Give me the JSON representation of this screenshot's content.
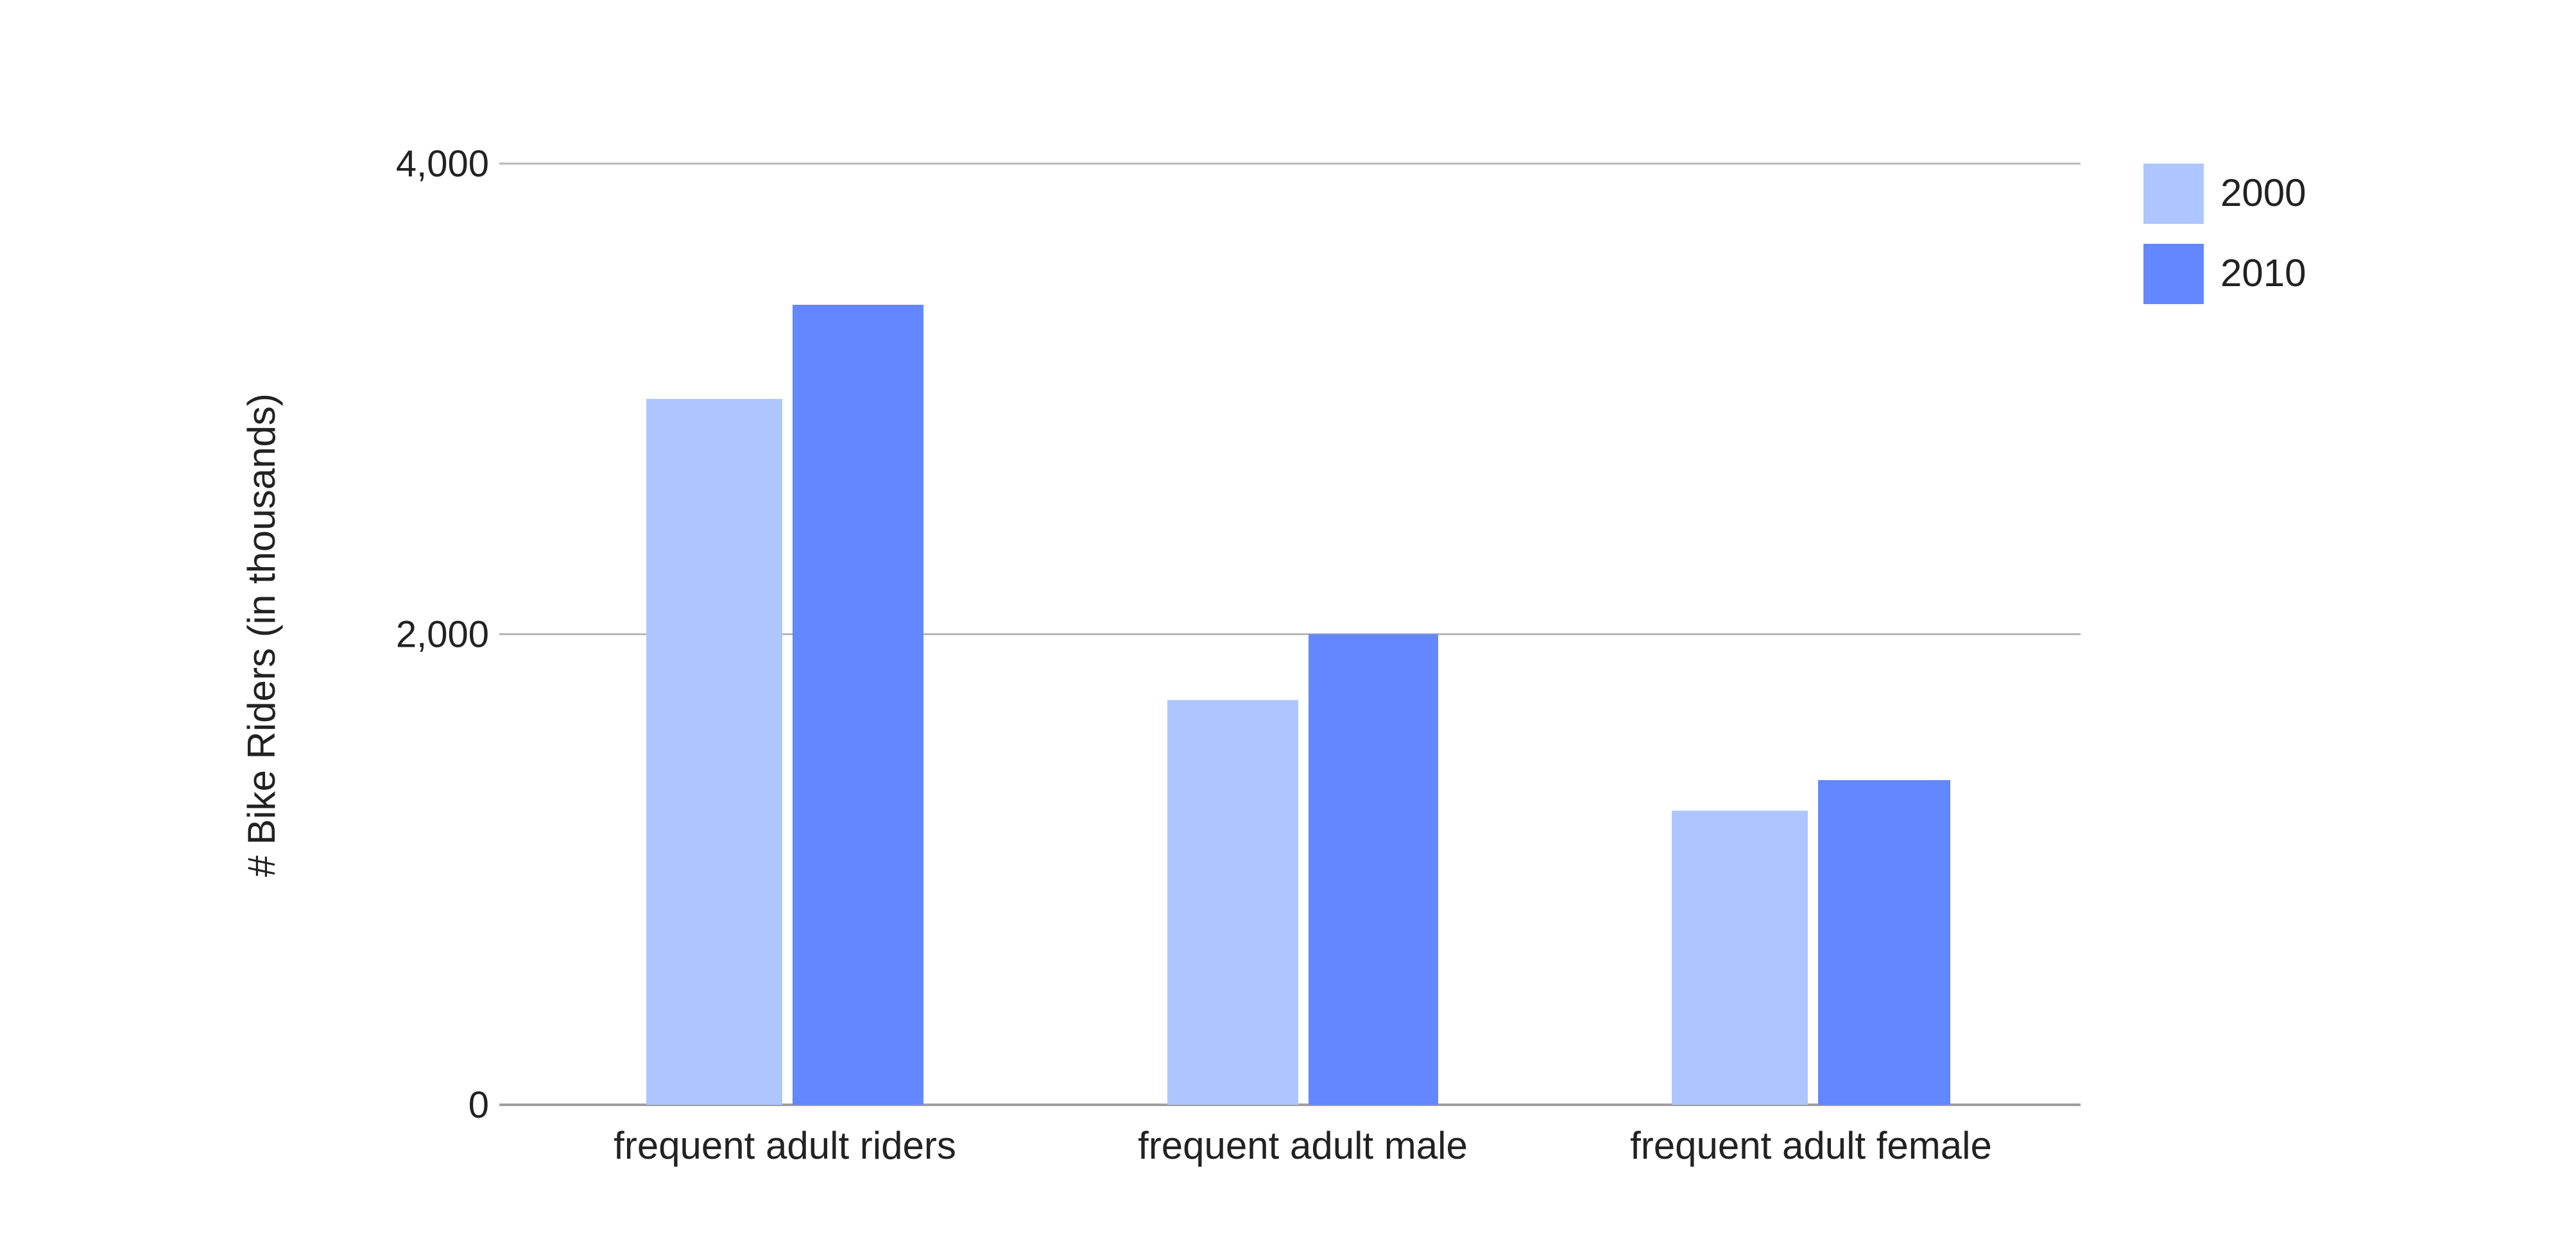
{
  "chart_data": {
    "type": "bar",
    "title": "",
    "xlabel": "",
    "ylabel": "# Bike Riders (in thousands)",
    "categories": [
      "frequent adult riders",
      "frequent adult male",
      "frequent adult female"
    ],
    "series": [
      {
        "name": "2000",
        "color": "#aec6ff",
        "values": [
          3000,
          1720,
          1250
        ]
      },
      {
        "name": "2010",
        "color": "#6287ff",
        "values": [
          3400,
          2000,
          1380
        ]
      }
    ],
    "ylim": [
      0,
      4000
    ],
    "yticks": [
      0,
      2000,
      4000
    ],
    "ytick_labels": [
      "0",
      "2,000",
      "4,000"
    ],
    "grid": true,
    "legend": "top-right"
  }
}
